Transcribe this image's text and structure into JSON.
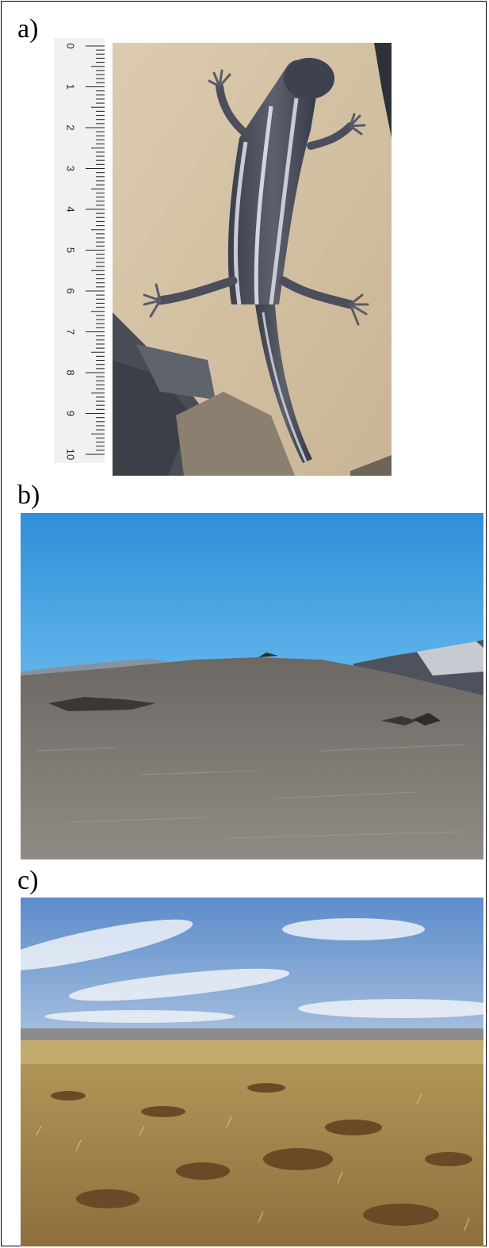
{
  "panels": [
    {
      "label": "a)"
    },
    {
      "label": "b)"
    },
    {
      "label": "c)"
    }
  ],
  "ruler": {
    "numbers": [
      "0",
      "1",
      "2",
      "3",
      "4",
      "5",
      "6",
      "7",
      "8",
      "9",
      "10"
    ]
  },
  "colors": {
    "sand_rock": "#d8c6a8",
    "lizard_dark": "#2e3440",
    "lizard_stripe": "#c9ccd6",
    "sky_b": "#2f8fd8",
    "ground_b": "#7c7770",
    "sky_c": "#6f9bd0",
    "ground_c": "#a8884c"
  }
}
